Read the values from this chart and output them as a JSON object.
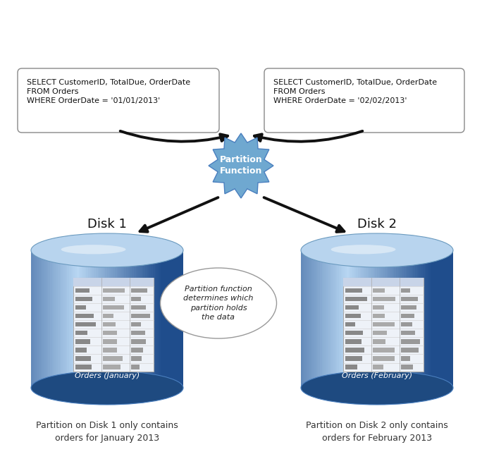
{
  "sql_box1": "SELECT CustomerID, TotalDue, OrderDate\nFROM Orders\nWHERE OrderDate = '01/01/2013'",
  "sql_box2": "SELECT CustomerID, TotalDue, OrderDate\nFROM Orders\nWHERE OrderDate = '02/02/2013'",
  "partition_label": "Partition\nFunction",
  "ellipse_text": "Partition function\ndetermines which\npartition holds\nthe data",
  "disk1_label": "Disk 1",
  "disk2_label": "Disk 2",
  "orders_jan": "Orders (January)",
  "orders_feb": "Orders (February)",
  "caption1": "Partition on Disk 1 only contains\norders for January 2013",
  "caption2": "Partition on Disk 2 only contains\norders for February 2013",
  "bg_color": "#ffffff",
  "arrow_color": "#111111",
  "text_color": "#111111",
  "caption_color": "#333333",
  "starburst_color": "#6fa8d0",
  "starburst_edge": "#4a7fbf",
  "box_edge": "#888888",
  "disk_light": "#c8ddf0",
  "disk_mid": "#4a7fbf",
  "disk_dark": "#1e4a80"
}
